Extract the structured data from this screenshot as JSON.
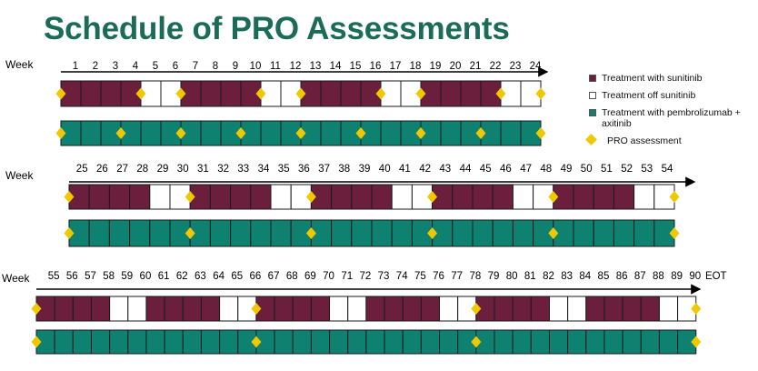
{
  "title": "Schedule of PRO Assessments",
  "week_label": "Week",
  "colors": {
    "on": "#6b1f3c",
    "off": "#ffffff",
    "combo": "#0e8170",
    "pro": "#f0c800",
    "border": "#1a1a1a",
    "title": "#1a6b57"
  },
  "legend": [
    {
      "label": "Treatment with sunitinib",
      "color": "#6b1f3c",
      "kind": "swatch"
    },
    {
      "label": "Treatment off sunitinib",
      "color": "#ffffff",
      "kind": "swatch"
    },
    {
      "label": "Treatment with pembrolizumab + axitinib",
      "color": "#0e8170",
      "kind": "swatch"
    },
    {
      "label": "PRO assessment",
      "color": "#f0c800",
      "kind": "diamond"
    }
  ],
  "eot_label": "EOT",
  "sections": [
    {
      "weeks": [
        "1",
        "2",
        "3",
        "4",
        "5",
        "6",
        "7",
        "8",
        "9",
        "10",
        "11",
        "12",
        "13",
        "14",
        "15",
        "16",
        "17",
        "18",
        "19",
        "20",
        "21",
        "22",
        "23",
        "24"
      ],
      "sunitinib": [
        "on",
        "on",
        "on",
        "on",
        "off",
        "off",
        "on",
        "on",
        "on",
        "on",
        "off",
        "off",
        "on",
        "on",
        "on",
        "on",
        "off",
        "off",
        "on",
        "on",
        "on",
        "on",
        "off",
        "off"
      ],
      "sunitinib_pro": [
        0,
        4,
        6,
        10,
        12,
        16,
        18,
        22,
        24
      ],
      "combo_pro": [
        0,
        3,
        6,
        9,
        12,
        15,
        18,
        21,
        24
      ]
    },
    {
      "weeks": [
        "25",
        "26",
        "27",
        "28",
        "29",
        "30",
        "31",
        "32",
        "33",
        "34",
        "35",
        "36",
        "37",
        "38",
        "39",
        "40",
        "41",
        "42",
        "43",
        "44",
        "45",
        "46",
        "47",
        "48",
        "49",
        "50",
        "51",
        "52",
        "53",
        "54"
      ],
      "sunitinib": [
        "on",
        "on",
        "on",
        "on",
        "off",
        "off",
        "on",
        "on",
        "on",
        "on",
        "off",
        "off",
        "on",
        "on",
        "on",
        "on",
        "off",
        "off",
        "on",
        "on",
        "on",
        "on",
        "off",
        "off",
        "on",
        "on",
        "on",
        "on",
        "off",
        "off"
      ],
      "sunitinib_pro": [
        0,
        6,
        12,
        18,
        24,
        30
      ],
      "combo_pro": [
        0,
        6,
        12,
        18,
        24,
        30
      ]
    },
    {
      "weeks": [
        "55",
        "56",
        "57",
        "58",
        "59",
        "60",
        "61",
        "62",
        "63",
        "64",
        "65",
        "66",
        "67",
        "68",
        "69",
        "70",
        "71",
        "72",
        "73",
        "74",
        "75",
        "76",
        "77",
        "78",
        "79",
        "80",
        "81",
        "82",
        "83",
        "84",
        "85",
        "86",
        "87",
        "88",
        "89",
        "90"
      ],
      "sunitinib": [
        "on",
        "on",
        "on",
        "on",
        "off",
        "off",
        "on",
        "on",
        "on",
        "on",
        "off",
        "off",
        "on",
        "on",
        "on",
        "on",
        "off",
        "off",
        "on",
        "on",
        "on",
        "on",
        "off",
        "off",
        "on",
        "on",
        "on",
        "on",
        "off",
        "off",
        "on",
        "on",
        "on",
        "on",
        "off",
        "off"
      ],
      "sunitinib_pro": [
        0,
        12,
        24,
        36
      ],
      "combo_pro": [
        0,
        12,
        24,
        36
      ]
    }
  ]
}
